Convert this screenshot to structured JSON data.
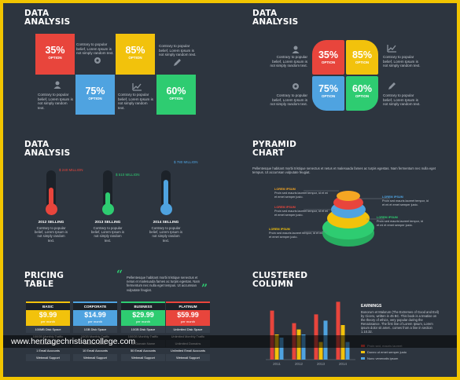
{
  "colors": {
    "background": "#2d353f",
    "border": "#f2c500",
    "red": "#e8453c",
    "yellow": "#f2c20c",
    "blue": "#4fa3e0",
    "green": "#2ecc71",
    "dark": "#1c2229"
  },
  "panel1": {
    "title_line1": "DATA",
    "title_line2": "ANALYSIS",
    "tiles": [
      {
        "pct": "35%",
        "option": "OPTION"
      },
      {
        "pct": "75%",
        "option": "OPTION"
      },
      {
        "pct": "85%",
        "option": "OPTION"
      },
      {
        "pct": "60%",
        "option": "OPTION"
      }
    ],
    "texts": [
      "Contrary to popular belief, Lorem Ipsum is not simply random text.",
      "Contrary to popular belief, Lorem Ipsum is not simply random text.",
      "Contrary to popular belief, Lorem Ipsum is not simply random text.",
      "Contrary to popular belief, Lorem Ipsum is not simply random text."
    ],
    "icons": [
      "person-icon",
      "gear-icon",
      "chart-icon",
      "pencil-icon"
    ]
  },
  "panel2": {
    "title_line1": "DATA",
    "title_line2": "ANALYSIS",
    "quadrants": [
      {
        "pct": "35%",
        "option": "OPTION"
      },
      {
        "pct": "85%",
        "option": "OPTION"
      },
      {
        "pct": "75%",
        "option": "OPTION"
      },
      {
        "pct": "60%",
        "option": "OPTION"
      }
    ],
    "texts": [
      "Contrary to popular belief, Lorem Ipsum is not simply random text.",
      "Contrary to popular belief, Lorem Ipsum is not simply random text.",
      "Contrary to popular belief, Lorem Ipsum is not simply random text.",
      "Contrary to popular belief, Lorem Ipsum is not simply random text."
    ]
  },
  "panel3": {
    "title_line1": "DATA",
    "title_line2": "ANALYSIS",
    "thermometers": [
      {
        "value": "$ 240 MILLION",
        "year": "2012 SELLING",
        "desc": "Contrary to popular belief, Lorem Ipsum is not simply random text.",
        "level": 0.6
      },
      {
        "value": "$ 510 MILLION",
        "year": "2013 SELLING",
        "desc": "Contrary to popular belief, Lorem Ipsum is not simply random text.",
        "level": 0.45
      },
      {
        "value": "$ 780 MILLION",
        "year": "2014 SELLING",
        "desc": "Contrary to popular belief, Lorem Ipsum is not simply random text.",
        "level": 0.85
      }
    ]
  },
  "panel4": {
    "title_line1": "PYRAMID",
    "title_line2": "CHART",
    "intro": "Pellentesque habitant morbi tristique senectus et netus et malesuada fames ac turpis egestas. Nam fermentum nec nulla eget tempus. Ut accumsan vulputate feugiat.",
    "left_labels": [
      {
        "heading": "LOREM IPSUM",
        "text": "Proin sed mauris laoreet tempor, id et mi et emet semper justo."
      },
      {
        "heading": "LOREM IPSUM",
        "text": "Proin sed mauris laoreet tempor, id et mi et emet semper justo."
      },
      {
        "heading": "LOREM IPSUM",
        "text": "Proin sed mauris laoreet tempor, id et mi et emet semper justo."
      }
    ],
    "right_labels": [
      {
        "heading": "LOREM IPSUM",
        "text": "Proin sed mauris laoreet tempor, id et mi et emet semper justo."
      },
      {
        "heading": "LOREM IPSUM",
        "text": "Proin sed mauris laoreet tempor, id et mi et emet semper justo."
      }
    ]
  },
  "panel5": {
    "title_line1": "PRICING",
    "title_line2": "TABLE",
    "quote": "Pellentesque habitant morbi tristique senectus et netus et malesuada fames ac turpis egestas. Nam fermentum nec nulla eget tempus. Ut accumsan vulputate feugiat.",
    "plans": [
      {
        "name": "BASIC",
        "price": "$9.99",
        "period": "per month",
        "rows": [
          "100MB Disk Space",
          "100GB Monthly Traffic",
          "1 Domain Name",
          "1 Email Accounts",
          "Webmail Support"
        ]
      },
      {
        "name": "CORPORATE",
        "price": "$14.99",
        "period": "per month",
        "rows": [
          "1GB Disk Space",
          "10GB Monthly Traffic",
          "5 Domain Name",
          "10 Email Accounts",
          "Webmail Support"
        ]
      },
      {
        "name": "BUSINESS",
        "price": "$29.99",
        "period": "per month",
        "rows": [
          "10GB Disk Space",
          "100GB Monthly Traffic",
          "10 Domain Name",
          "50 Email Accounts",
          "Webmail Support"
        ]
      },
      {
        "name": "PLATINUM",
        "price": "$59.99",
        "period": "per month",
        "rows": [
          "Unlimited Disk Space",
          "Unlimited Monthly Traffic",
          "Unlimited Domains",
          "Unlimited Email Accounts",
          "Webmail Support"
        ]
      }
    ]
  },
  "panel6": {
    "title_line1": "CLUSTERED",
    "title_line2": "COLUMN",
    "earnings_title": "EARNINGS",
    "earnings_text": "Bonorum et Malorum (The Extremes of Good and Evil) by Cicero, written in 45 BC. This book is a treatise on the theory of ethics, very popular during the Renaissance. The first line of Lorem Ipsum, Lorem ipsum dolor sit amet.. comes from a line in section 1.10.32.",
    "legend": [
      "Proin sed, mauris laoreet",
      "Donec ut emet semper justo",
      "Nunc venenatis ipsum"
    ]
  },
  "chart_data": {
    "type": "bar",
    "categories": [
      "2011",
      "2012",
      "2013",
      "2014"
    ],
    "series": [
      {
        "values": [
          78,
          58,
          72,
          92
        ]
      },
      {
        "values": [
          40,
          48,
          28,
          55
        ]
      },
      {
        "values": [
          35,
          40,
          62,
          28
        ]
      }
    ],
    "ylim": [
      0,
      100
    ],
    "colors": [
      "#e8453c",
      "#f2c20c",
      "#4fa3e0"
    ]
  },
  "watermark": "www.heritagechristiancollege.com"
}
